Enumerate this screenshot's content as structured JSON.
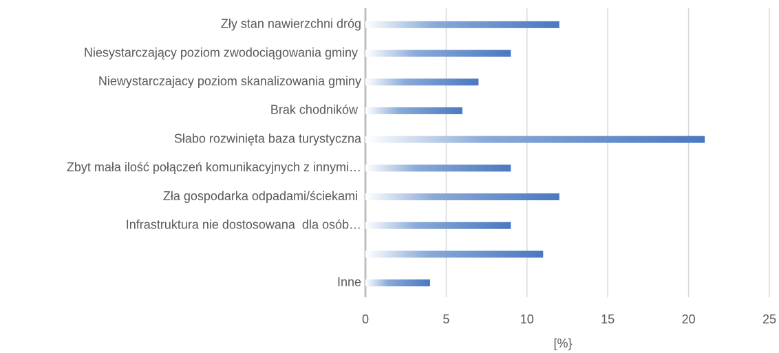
{
  "chart_data": {
    "type": "bar",
    "orientation": "horizontal",
    "categories": [
      "Zły stan nawierzchni dróg",
      "Niesystarczający poziom zwodociągowania gminy ",
      "Niewystarczajacy poziom skanalizowania gminy",
      "Brak chodników ",
      "Słabo rozwinięta baza turystyczna",
      "Zbyt mała ilość połączeń komunikacyjnych z innymi…",
      "Zła gospodarka odpadami/ściekami ",
      "Infrastruktura nie dostosowana  dla osób…",
      null,
      "Inne"
    ],
    "values": [
      12,
      9,
      7,
      6,
      21,
      9,
      12,
      9,
      11,
      4
    ],
    "color": "#4a78c0",
    "xlim": [
      0,
      25
    ],
    "xticks": [
      0,
      5,
      10,
      15,
      20,
      25
    ],
    "xlabel": "[%}",
    "grid": true
  }
}
